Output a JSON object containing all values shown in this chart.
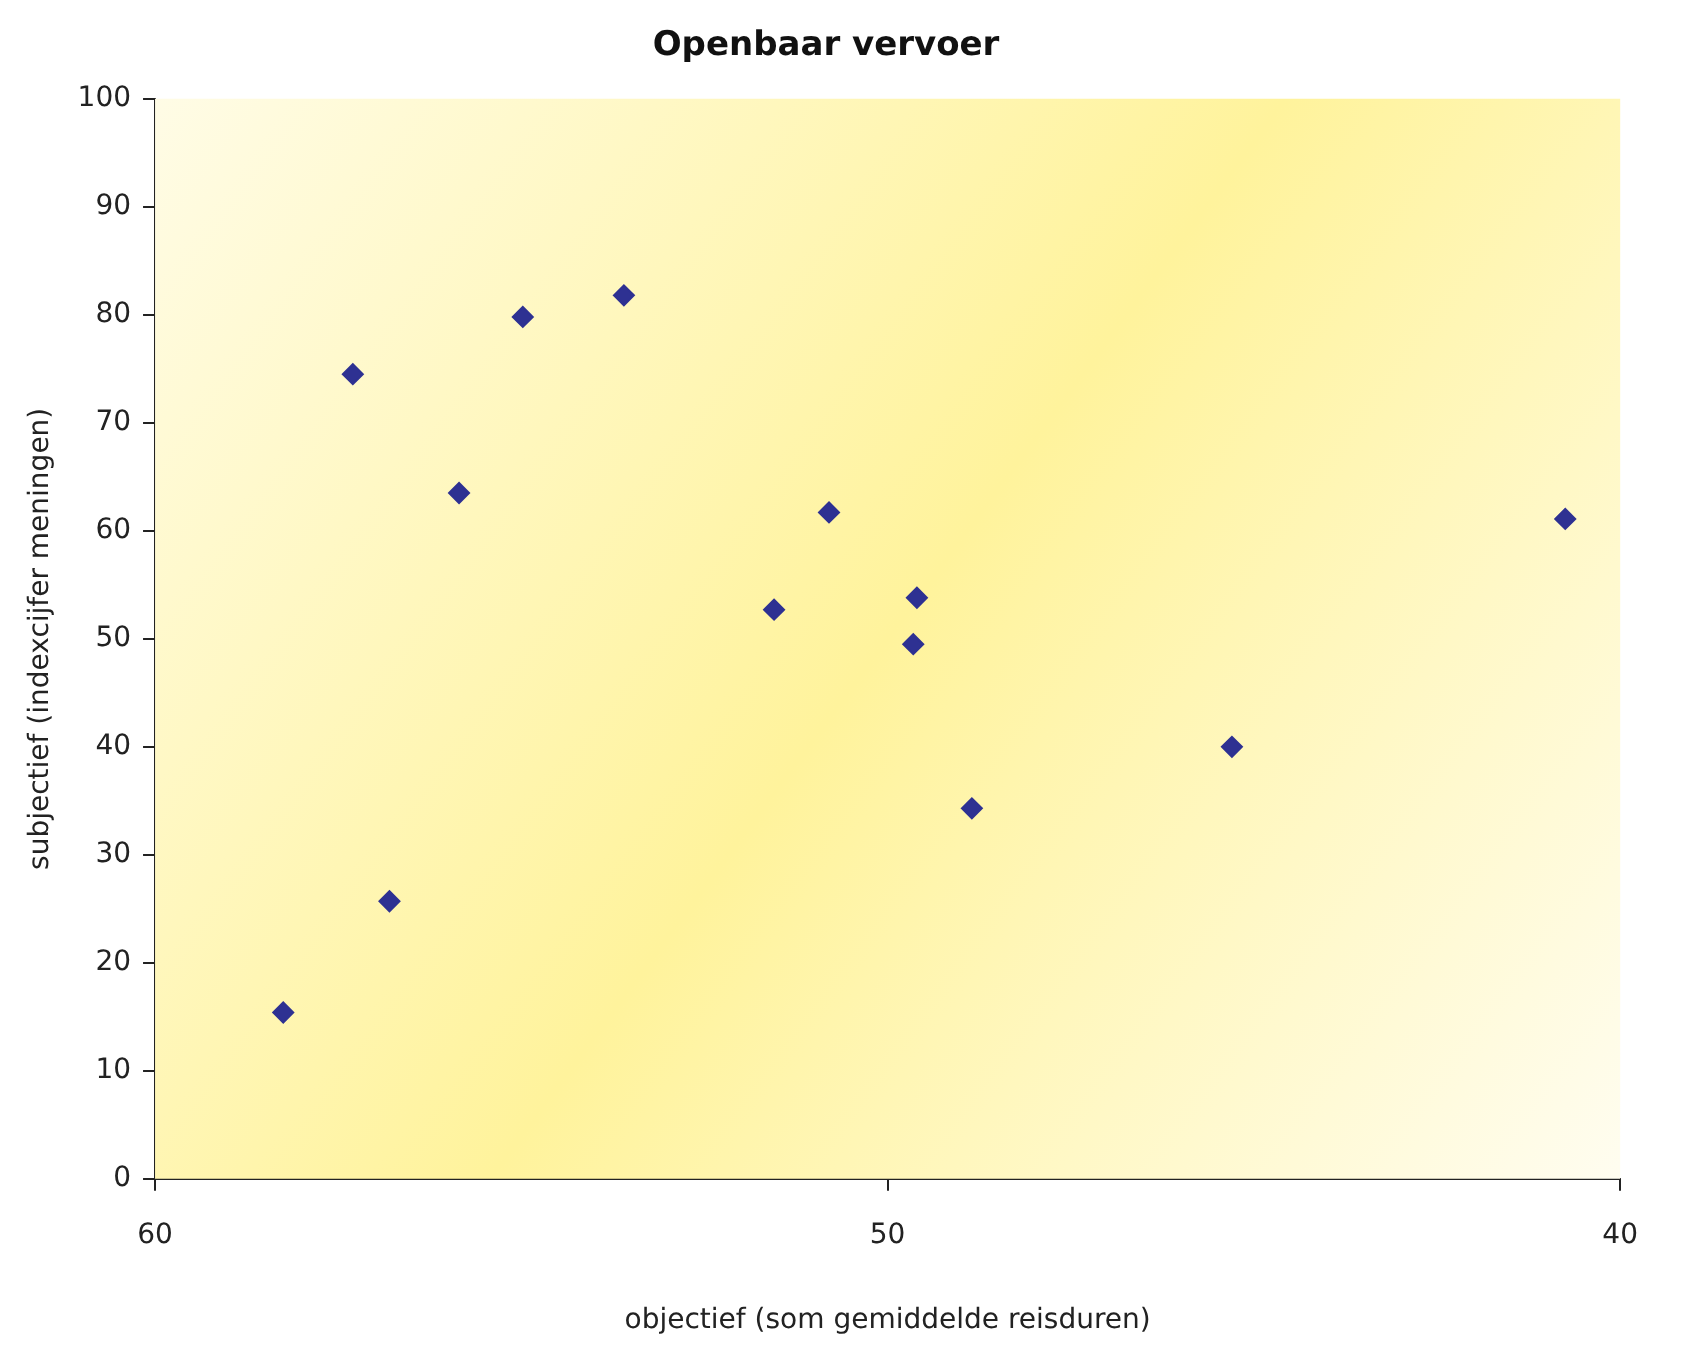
{
  "chart_data": {
    "type": "scatter",
    "title": "Openbaar vervoer",
    "xlabel": "objectief (som gemiddelde reisduren)",
    "ylabel": "subjectief (indexcijfer meningen)",
    "x": [
      58.25,
      57.3,
      56.8,
      55.85,
      54.98,
      53.6,
      51.55,
      50.8,
      49.6,
      49.65,
      48.85,
      45.3,
      40.75
    ],
    "series": [
      {
        "color": "#2e3192",
        "values": [
          15.4,
          74.5,
          25.7,
          63.5,
          79.8,
          81.8,
          52.7,
          61.7,
          53.8,
          49.5,
          34.3,
          40.0,
          61.1
        ]
      }
    ],
    "xlim": [
      60,
      40
    ],
    "xticks": [
      60,
      50,
      40
    ],
    "ylim": [
      0,
      100
    ],
    "yticks": [
      0,
      10,
      20,
      30,
      40,
      50,
      60,
      70,
      80,
      90,
      100
    ],
    "marker": "diamond"
  }
}
